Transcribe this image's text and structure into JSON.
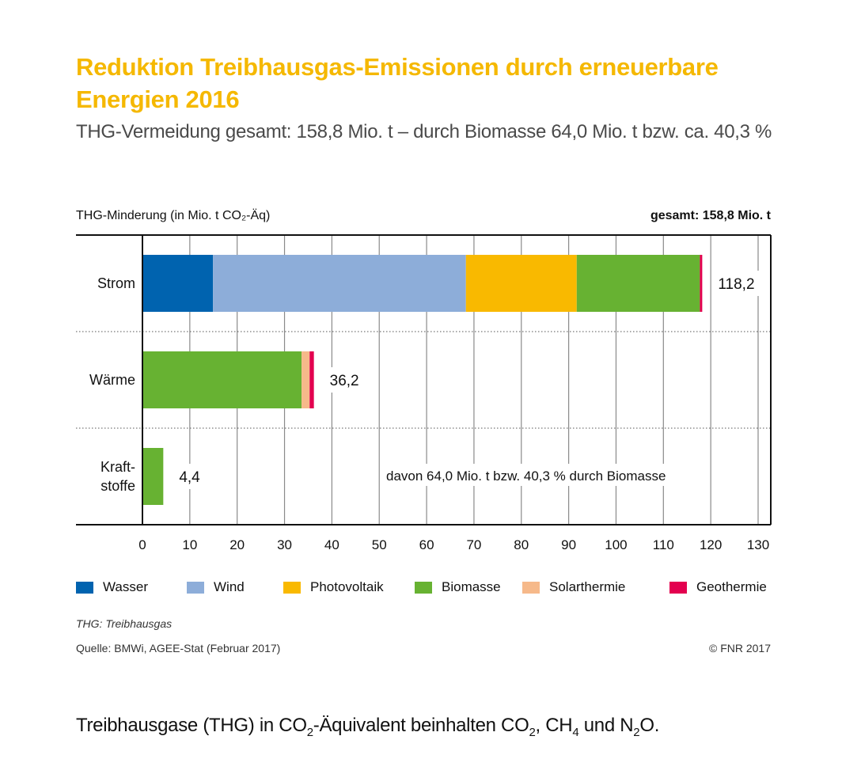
{
  "title": "Reduktion Treibhausgas-Emissionen durch erneuerbare Energien 2016",
  "subtitle": "THG-Vermeidung gesamt: 158,8 Mio. t – durch Biomasse 64,0 Mio. t bzw. ca. 40,3 %",
  "footnote_abbrev": "THG: Treibhausgas",
  "source": "Quelle: BMWi, AGEE-Stat (Februar 2017)",
  "copyright": "© FNR 2017",
  "footer": {
    "part1": "Treibhausgase (THG) in CO",
    "sub1": "2",
    "part2": "-Äquivalent beinhalten CO",
    "sub2": "2",
    "part3": ", CH",
    "sub3": "4",
    "part4": " und N",
    "sub4": "2",
    "part5": "O."
  },
  "chart_data": {
    "type": "bar",
    "orientation": "horizontal",
    "stacked": true,
    "title": "THG-Minderung (in Mio. t CO₂-Äq)",
    "total_label": "gesamt: 158,8 Mio. t",
    "annotation": "davon 64,0 Mio. t bzw. 40,3 % durch Biomasse",
    "xlabel": "",
    "ylabel": "THG-Minderung (in Mio. t CO₂-Äq)",
    "xlim": [
      0,
      132.5
    ],
    "xticks": [
      0,
      10,
      20,
      30,
      40,
      50,
      60,
      70,
      80,
      90,
      100,
      110,
      120,
      130
    ],
    "grid": true,
    "legend_position": "bottom",
    "categories": [
      "Strom",
      "Wärme",
      "Kraft-\nstoffe"
    ],
    "category_lines": [
      [
        "Strom"
      ],
      [
        "Wärme"
      ],
      [
        "Kraft-",
        "stoffe"
      ]
    ],
    "totals": [
      118.2,
      36.2,
      4.4
    ],
    "total_labels": [
      "118,2",
      "36,2",
      "4,4"
    ],
    "series": [
      {
        "name": "Wasser",
        "color": "#0063af",
        "values": [
          14.9,
          0,
          0
        ]
      },
      {
        "name": "Wind",
        "color": "#8dadd9",
        "values": [
          53.4,
          0,
          0
        ]
      },
      {
        "name": "Photovoltaik",
        "color": "#f9b900",
        "values": [
          23.4,
          0,
          0
        ]
      },
      {
        "name": "Biomasse",
        "color": "#67b232",
        "values": [
          26.0,
          33.6,
          4.4
        ]
      },
      {
        "name": "Solarthermie",
        "color": "#f6b98a",
        "values": [
          0,
          1.7,
          0
        ]
      },
      {
        "name": "Geothermie",
        "color": "#e3004f",
        "values": [
          0.5,
          0.9,
          0
        ]
      }
    ]
  }
}
